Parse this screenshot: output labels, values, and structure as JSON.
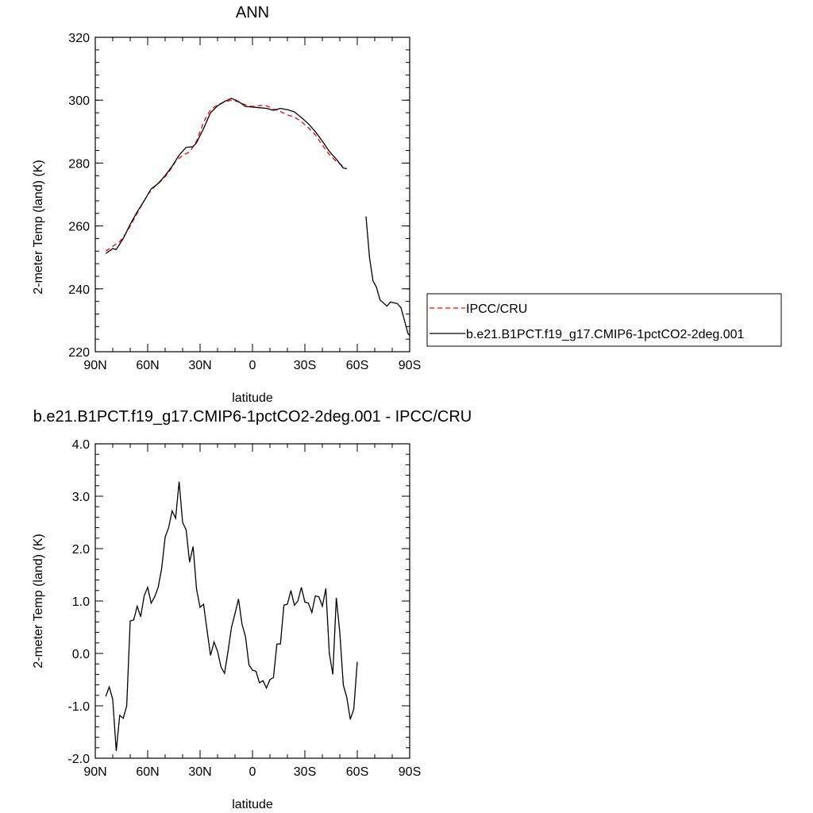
{
  "chart_data": [
    {
      "type": "line",
      "title": "ANN",
      "xlabel": "latitude",
      "ylabel": "2-meter Temp (land) (K)",
      "xlim": [
        90,
        -90
      ],
      "ylim": [
        220,
        320
      ],
      "x_ticks": [
        90,
        60,
        30,
        0,
        -30,
        -60,
        -90
      ],
      "x_tick_labels": [
        "90N",
        "60N",
        "30N",
        "0",
        "30S",
        "60S",
        "90S"
      ],
      "y_ticks": [
        220,
        240,
        260,
        280,
        300,
        320
      ],
      "y_tick_labels": [
        "220",
        "240",
        "260",
        "280",
        "300",
        "320"
      ],
      "grid": false,
      "legend_position": "right, outside plot",
      "series": [
        {
          "name": "IPCC/CRU",
          "color": "#ff0000",
          "style": "dashed",
          "points": [
            [
              84,
              252
            ],
            [
              80,
              253.5
            ],
            [
              76,
              255
            ],
            [
              72,
              258
            ],
            [
              68,
              262
            ],
            [
              64,
              266
            ],
            [
              60,
              270
            ],
            [
              56,
              272.5
            ],
            [
              52,
              274.5
            ],
            [
              48,
              277
            ],
            [
              44,
              280.5
            ],
            [
              40,
              282.5
            ],
            [
              36,
              283.5
            ],
            [
              32,
              287
            ],
            [
              28,
              293
            ],
            [
              24,
              297
            ],
            [
              20,
              298.5
            ],
            [
              16,
              299.5
            ],
            [
              12,
              300
            ],
            [
              8,
              299.5
            ],
            [
              4,
              298.5
            ],
            [
              0,
              298
            ],
            [
              -4,
              298.3
            ],
            [
              -8,
              298.2
            ],
            [
              -12,
              297.2
            ],
            [
              -16,
              296.4
            ],
            [
              -20,
              295.3
            ],
            [
              -24,
              294.6
            ],
            [
              -28,
              293.2
            ],
            [
              -32,
              291.2
            ],
            [
              -36,
              289
            ],
            [
              -40,
              285.7
            ],
            [
              -44,
              282.7
            ],
            [
              -48,
              280.5
            ],
            [
              -52,
              279
            ]
          ]
        },
        {
          "name": "b.e21.B1PCT.f19_g17.CMIP6-1pctCO2-2deg.001",
          "color": "#000000",
          "style": "solid",
          "segments": [
            [
              [
                84,
                251.2
              ],
              [
                80,
                252.8
              ],
              [
                78,
                252.5
              ],
              [
                74,
                256
              ],
              [
                70,
                260.5
              ],
              [
                66,
                264.5
              ],
              [
                62,
                268
              ],
              [
                58,
                271.8
              ],
              [
                54,
                273.5
              ],
              [
                50,
                276
              ],
              [
                46,
                279
              ],
              [
                42,
                282.5
              ],
              [
                38,
                285
              ],
              [
                34,
                285.2
              ],
              [
                32,
                286.5
              ],
              [
                28,
                291
              ],
              [
                24,
                296
              ],
              [
                20,
                298.2
              ],
              [
                16,
                299.6
              ],
              [
                12,
                300.6
              ],
              [
                8,
                299.6
              ],
              [
                4,
                298
              ],
              [
                0,
                297.8
              ],
              [
                -4,
                297.6
              ],
              [
                -8,
                297.4
              ],
              [
                -12,
                296.8
              ],
              [
                -16,
                297.4
              ],
              [
                -20,
                297
              ],
              [
                -24,
                296.3
              ],
              [
                -28,
                294.5
              ],
              [
                -32,
                292.5
              ],
              [
                -36,
                290
              ],
              [
                -40,
                287
              ],
              [
                -44,
                283.7
              ],
              [
                -48,
                281.2
              ],
              [
                -52,
                278.4
              ],
              [
                -54,
                278.2
              ]
            ],
            [
              [
                -65,
                263
              ],
              [
                -67,
                250
              ],
              [
                -69,
                242.5
              ],
              [
                -71,
                240.5
              ],
              [
                -73,
                236.5
              ],
              [
                -75,
                235.5
              ],
              [
                -77,
                234.5
              ],
              [
                -79,
                235.8
              ],
              [
                -83,
                235.3
              ],
              [
                -85,
                234
              ],
              [
                -87,
                230
              ],
              [
                -89,
                225.8
              ],
              [
                -90,
                225.2
              ]
            ]
          ]
        }
      ]
    },
    {
      "type": "line",
      "title": "b.e21.B1PCT.f19_g17.CMIP6-1pctCO2-2deg.001 - IPCC/CRU",
      "xlabel": "latitude",
      "ylabel": "2-meter Temp (land) (K)",
      "xlim": [
        90,
        -90
      ],
      "ylim": [
        -2.0,
        4.0
      ],
      "x_ticks": [
        90,
        60,
        30,
        0,
        -30,
        -60,
        -90
      ],
      "x_tick_labels": [
        "90N",
        "60N",
        "30N",
        "0",
        "30S",
        "60S",
        "90S"
      ],
      "y_ticks": [
        -2,
        -1,
        0,
        1,
        2,
        3,
        4
      ],
      "y_tick_labels": [
        "-2.0",
        "-1.0",
        "0.0",
        "1.0",
        "2.0",
        "3.0",
        "4.0"
      ],
      "grid": false,
      "series": [
        {
          "color": "#000000",
          "style": "solid",
          "segments": [
            [
              [
                84,
                -0.82
              ],
              [
                82,
                -0.64
              ],
              [
                80,
                -0.88
              ],
              [
                78,
                -1.86
              ],
              [
                76,
                -1.18
              ],
              [
                74,
                -1.24
              ],
              [
                72,
                -1.0
              ],
              [
                70,
                0.62
              ],
              [
                68,
                0.64
              ],
              [
                66,
                0.9
              ],
              [
                64,
                0.7
              ],
              [
                62,
                1.1
              ],
              [
                60,
                1.26
              ],
              [
                58,
                0.96
              ],
              [
                56,
                1.08
              ],
              [
                54,
                1.26
              ],
              [
                52,
                1.62
              ],
              [
                50,
                2.22
              ],
              [
                48,
                2.4
              ],
              [
                46,
                2.72
              ],
              [
                44,
                2.58
              ],
              [
                42,
                3.28
              ],
              [
                40,
                2.5
              ],
              [
                38,
                2.36
              ],
              [
                36,
                1.74
              ],
              [
                34,
                2.04
              ],
              [
                32,
                1.22
              ],
              [
                30,
                0.88
              ],
              [
                28,
                0.94
              ],
              [
                26,
                0.44
              ],
              [
                24,
                -0.04
              ],
              [
                22,
                0.22
              ],
              [
                20,
                0.04
              ],
              [
                18,
                -0.26
              ],
              [
                16,
                -0.38
              ],
              [
                14,
                0.04
              ],
              [
                12,
                0.5
              ],
              [
                10,
                0.76
              ],
              [
                8,
                1.04
              ],
              [
                6,
                0.56
              ],
              [
                4,
                0.32
              ],
              [
                2,
                -0.22
              ],
              [
                0,
                -0.32
              ],
              [
                -2,
                -0.34
              ],
              [
                -4,
                -0.56
              ],
              [
                -6,
                -0.52
              ],
              [
                -8,
                -0.66
              ],
              [
                -10,
                -0.5
              ],
              [
                -12,
                -0.46
              ],
              [
                -14,
                0.18
              ],
              [
                -16,
                0.18
              ],
              [
                -18,
                0.92
              ],
              [
                -20,
                0.94
              ],
              [
                -22,
                1.2
              ],
              [
                -24,
                0.92
              ],
              [
                -26,
                1.0
              ],
              [
                -28,
                1.26
              ],
              [
                -30,
                0.98
              ],
              [
                -32,
                0.96
              ],
              [
                -34,
                0.78
              ],
              [
                -36,
                1.1
              ],
              [
                -38,
                1.08
              ],
              [
                -40,
                0.9
              ],
              [
                -42,
                1.24
              ],
              [
                -44,
                0.0
              ],
              [
                -46,
                -0.4
              ],
              [
                -48,
                1.06
              ],
              [
                -50,
                0.4
              ],
              [
                -52,
                -0.6
              ],
              [
                -54,
                -0.84
              ],
              [
                -56,
                -1.26
              ],
              [
                -58,
                -1.06
              ],
              [
                -60,
                -0.16
              ]
            ]
          ]
        }
      ]
    }
  ]
}
